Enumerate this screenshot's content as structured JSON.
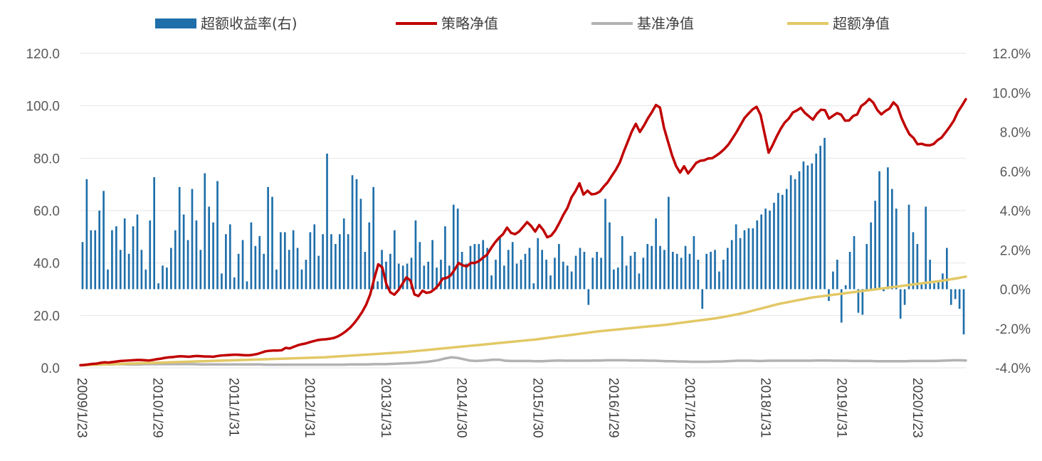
{
  "chart_data": {
    "type": "line+bar",
    "title": "",
    "legend_position": "top",
    "left_axis": {
      "ylim": [
        0,
        120
      ],
      "ticks": [
        "0.0",
        "20.0",
        "40.0",
        "60.0",
        "80.0",
        "100.0",
        "120.0"
      ]
    },
    "right_axis": {
      "ylim": [
        -4,
        12
      ],
      "ticks": [
        "-4.0%",
        "-2.0%",
        "0.0%",
        "2.0%",
        "4.0%",
        "6.0%",
        "8.0%",
        "10.0%",
        "12.0%"
      ]
    },
    "x_tick_labels": [
      "2009/1/23",
      "2010/1/29",
      "2011/1/31",
      "2012/1/31",
      "2013/1/31",
      "2014/1/30",
      "2015/1/30",
      "2016/1/29",
      "2017/1/26",
      "2018/1/31",
      "2019/1/31",
      "2020/1/23"
    ],
    "grid": "horizontal",
    "colors": {
      "bar": "#1F6FAA",
      "strategy": "#C00000",
      "benchmark": "#B2B2B2",
      "excess": "#E2C866"
    },
    "series": [
      {
        "name": "超额收益率(右)",
        "type": "bar",
        "axis": "right",
        "unit": "%",
        "values": [
          2.4,
          5.6,
          3.0,
          3.0,
          4.0,
          5.0,
          1.0,
          3.0,
          3.2,
          2.0,
          3.6,
          1.8,
          3.2,
          3.8,
          2.0,
          1.0,
          3.5,
          5.7,
          0.3,
          1.2,
          1.1,
          2.1,
          3.0,
          5.2,
          3.8,
          2.5,
          5.1,
          3.5,
          2.0,
          5.9,
          4.2,
          3.4,
          5.5,
          0.8,
          2.8,
          3.3,
          0.6,
          1.8,
          2.5,
          0.4,
          3.4,
          2.2,
          2.7,
          1.8,
          5.2,
          4.7,
          1.0,
          2.9,
          2.9,
          2.0,
          3.0,
          2.1,
          1.0,
          1.5,
          2.9,
          3.3,
          1.7,
          2.8,
          6.9,
          2.8,
          2.3,
          2.8,
          3.6,
          2.8,
          5.8,
          5.6,
          4.6,
          1.9,
          3.4,
          5.2,
          0.4,
          2.0,
          1.4,
          1.8,
          3.0,
          1.3,
          1.2,
          1.3,
          1.6,
          3.5,
          2.4,
          1.2,
          1.4,
          2.5,
          1.1,
          1.5,
          3.2,
          1.2,
          4.3,
          4.1,
          1.9,
          1.3,
          2.2,
          2.3,
          2.3,
          2.5,
          2.1,
          0.7,
          1.5,
          2.6,
          1.2,
          2.0,
          2.4,
          1.3,
          1.5,
          1.8,
          2.1,
          0.3,
          2.6,
          2.0,
          1.5,
          0.7,
          1.6,
          2.3,
          1.4,
          1.2,
          0.9,
          1.7,
          2.1,
          1.9,
          -0.8,
          1.6,
          1.9,
          1.6,
          4.6,
          3.4,
          1.0,
          1.1,
          2.7,
          1.2,
          1.7,
          1.9,
          0.8,
          1.6,
          2.3,
          2.2,
          3.6,
          2.2,
          2.0,
          4.7,
          1.9,
          1.8,
          1.6,
          2.2,
          1.8,
          2.7,
          1.5,
          -1.0,
          1.8,
          1.9,
          2.0,
          0.9,
          1.5,
          2.1,
          2.5,
          3.3,
          2.6,
          3.0,
          3.1,
          3.1,
          3.5,
          3.8,
          4.1,
          4.0,
          4.4,
          4.9,
          4.8,
          5.1,
          5.8,
          5.6,
          6.0,
          6.5,
          6.3,
          6.4,
          6.9,
          7.3,
          7.7,
          -0.6,
          0.9,
          1.5,
          -1.7,
          0.2,
          1.9,
          2.7,
          -1.2,
          -1.3,
          2.3,
          3.4,
          4.5,
          6.0,
          -0.1,
          6.2,
          5.1,
          4.1,
          -1.5,
          -0.8,
          4.3,
          2.9,
          2.3,
          0.3,
          4.2,
          1.5,
          0.3,
          0.4,
          0.8,
          2.1,
          -0.8,
          -0.5,
          -1.0,
          -2.3
        ],
        "note": "approximate monthly values read from chart"
      },
      {
        "name": "策略净值",
        "type": "line",
        "axis": "left",
        "values": [
          1.0,
          1.1,
          1.3,
          1.5,
          1.6,
          1.9,
          2.1,
          2.0,
          2.2,
          2.4,
          2.6,
          2.7,
          2.8,
          2.9,
          3.0,
          3.0,
          2.9,
          2.8,
          3.0,
          3.3,
          3.5,
          3.8,
          4.0,
          4.1,
          4.3,
          4.4,
          4.3,
          4.2,
          4.4,
          4.5,
          4.4,
          4.3,
          4.3,
          4.2,
          4.5,
          4.7,
          4.8,
          4.9,
          5.0,
          5.0,
          4.9,
          4.8,
          4.8,
          5.0,
          5.3,
          5.8,
          6.3,
          6.5,
          6.6,
          6.6,
          6.7,
          7.6,
          7.4,
          8.0,
          8.6,
          9.0,
          9.3,
          9.8,
          10.2,
          10.6,
          10.8,
          10.9,
          11.1,
          11.4,
          12.0,
          12.9,
          14.0,
          15.3,
          17.0,
          19.0,
          21.3,
          24.1,
          28.0,
          34.0,
          39.5,
          38.3,
          32.0,
          28.8,
          27.9,
          29.6,
          32.0,
          34.5,
          33.3,
          28.0,
          27.4,
          29.4,
          28.6,
          28.9,
          30.0,
          31.6,
          34.0,
          34.3,
          35.3,
          37.5,
          40.0,
          39.1,
          38.7,
          40.0,
          40.0,
          40.7,
          42.0,
          43.1,
          45.6,
          47.8,
          49.6,
          51.0,
          53.5,
          51.5,
          51.0,
          52.0,
          53.8,
          55.6,
          54.1,
          52.0,
          54.5,
          52.6,
          49.8,
          50.5,
          52.5,
          55.3,
          58.4,
          61.0,
          65.0,
          67.4,
          70.4,
          66.1,
          67.6,
          66.2,
          66.4,
          67.2,
          69.1,
          70.8,
          73.2,
          75.5,
          78.3,
          82.5,
          86.3,
          90.2,
          93.1,
          90.0,
          92.4,
          95.2,
          97.6,
          100.3,
          99.3,
          91.6,
          86.3,
          81.1,
          77.0,
          74.5,
          76.9,
          74.2,
          76.1,
          78.2,
          79.0,
          79.2,
          79.9,
          80.0,
          81.0,
          82.1,
          83.5,
          85.2,
          87.5,
          89.9,
          92.6,
          95.3,
          97.0,
          98.6,
          99.6,
          96.5,
          89.3,
          82.1,
          85.0,
          88.3,
          91.2,
          93.6,
          95.1,
          97.4,
          98.2,
          99.2,
          97.3,
          96.0,
          94.7,
          97.0,
          98.5,
          98.3,
          95.1,
          96.2,
          97.2,
          96.6,
          94.3,
          94.4,
          96.1,
          96.7,
          99.9,
          101.0,
          102.6,
          101.2,
          98.4,
          96.7,
          98.0,
          98.9,
          101.3,
          99.8,
          95.4,
          92.0,
          89.1,
          87.7,
          85.3,
          85.5,
          85.0,
          84.9,
          85.4,
          86.9,
          87.9,
          89.9,
          92.0,
          94.3,
          97.6,
          100.0,
          102.5
        ],
        "note": "approximate"
      },
      {
        "name": "基准净值",
        "type": "line",
        "axis": "left",
        "values": [
          1.0,
          1.1,
          1.2,
          1.2,
          1.3,
          1.3,
          1.4,
          1.4,
          1.3,
          1.3,
          1.3,
          1.4,
          1.4,
          1.4,
          1.4,
          1.4,
          1.4,
          1.4,
          1.4,
          1.4,
          1.3,
          1.3,
          1.3,
          1.3,
          1.3,
          1.3,
          1.3,
          1.3,
          1.3,
          1.3,
          1.3,
          1.2,
          1.2,
          1.2,
          1.2,
          1.2,
          1.2,
          1.2,
          1.2,
          1.2,
          1.2,
          1.2,
          1.2,
          1.2,
          1.2,
          1.3,
          1.3,
          1.3,
          1.3,
          1.4,
          1.4,
          1.4,
          1.5,
          1.6,
          1.7,
          1.8,
          1.9,
          2.1,
          2.3,
          2.6,
          3.0,
          3.6,
          4.0,
          3.8,
          3.3,
          2.8,
          2.6,
          2.7,
          2.9,
          3.1,
          3.1,
          2.7,
          2.6,
          2.6,
          2.6,
          2.6,
          2.5,
          2.5,
          2.6,
          2.7,
          2.8,
          2.7,
          2.7,
          2.7,
          2.7,
          2.7,
          2.8,
          2.8,
          2.9,
          2.9,
          2.9,
          2.9,
          2.8,
          2.8,
          2.8,
          2.7,
          2.7,
          2.6,
          2.5,
          2.5,
          2.4,
          2.4,
          2.3,
          2.3,
          2.3,
          2.3,
          2.4,
          2.4,
          2.5,
          2.6,
          2.7,
          2.7,
          2.7,
          2.6,
          2.6,
          2.7,
          2.7,
          2.7,
          2.7,
          2.7,
          2.7,
          2.7,
          2.7,
          2.8,
          2.8,
          2.8,
          2.7,
          2.7,
          2.7,
          2.6,
          2.6,
          2.6,
          2.6,
          2.5,
          2.5,
          2.5,
          2.5,
          2.5,
          2.5,
          2.6,
          2.6,
          2.6,
          2.6,
          2.6,
          2.7,
          2.8,
          2.9,
          2.9,
          2.8
        ],
        "note": "approximate"
      },
      {
        "name": "超额净值",
        "type": "line",
        "axis": "left",
        "values": [
          1.0,
          1.1,
          1.2,
          1.3,
          1.4,
          1.5,
          1.6,
          1.7,
          1.8,
          1.9,
          2.0,
          2.1,
          2.2,
          2.3,
          2.4,
          2.5,
          2.6,
          2.7,
          2.8,
          2.9,
          3.0,
          3.1,
          3.2,
          3.3,
          3.4,
          3.5,
          3.6,
          3.7,
          3.8,
          3.9,
          4.0,
          4.2,
          4.4,
          4.6,
          4.8,
          5.0,
          5.2,
          5.4,
          5.6,
          5.8,
          6.0,
          6.3,
          6.6,
          6.9,
          7.2,
          7.5,
          7.8,
          8.1,
          8.4,
          8.7,
          9.0,
          9.3,
          9.6,
          9.9,
          10.2,
          10.5,
          10.8,
          11.2,
          11.6,
          12.0,
          12.4,
          12.8,
          13.2,
          13.6,
          14.0,
          14.3,
          14.6,
          14.9,
          15.2,
          15.5,
          15.8,
          16.1,
          16.4,
          16.8,
          17.2,
          17.6,
          18.0,
          18.4,
          18.8,
          19.3,
          19.9,
          20.5,
          21.2,
          22.0,
          22.8,
          23.6,
          24.4,
          25.0,
          25.6,
          26.2,
          26.8,
          27.2,
          27.6,
          28.0,
          28.4,
          28.8,
          29.2,
          29.6,
          30.0,
          30.4,
          30.8,
          31.2,
          31.6,
          32.0,
          32.4,
          32.8,
          33.2,
          33.7,
          34.2,
          34.8
        ],
        "note": "approximate"
      }
    ]
  }
}
